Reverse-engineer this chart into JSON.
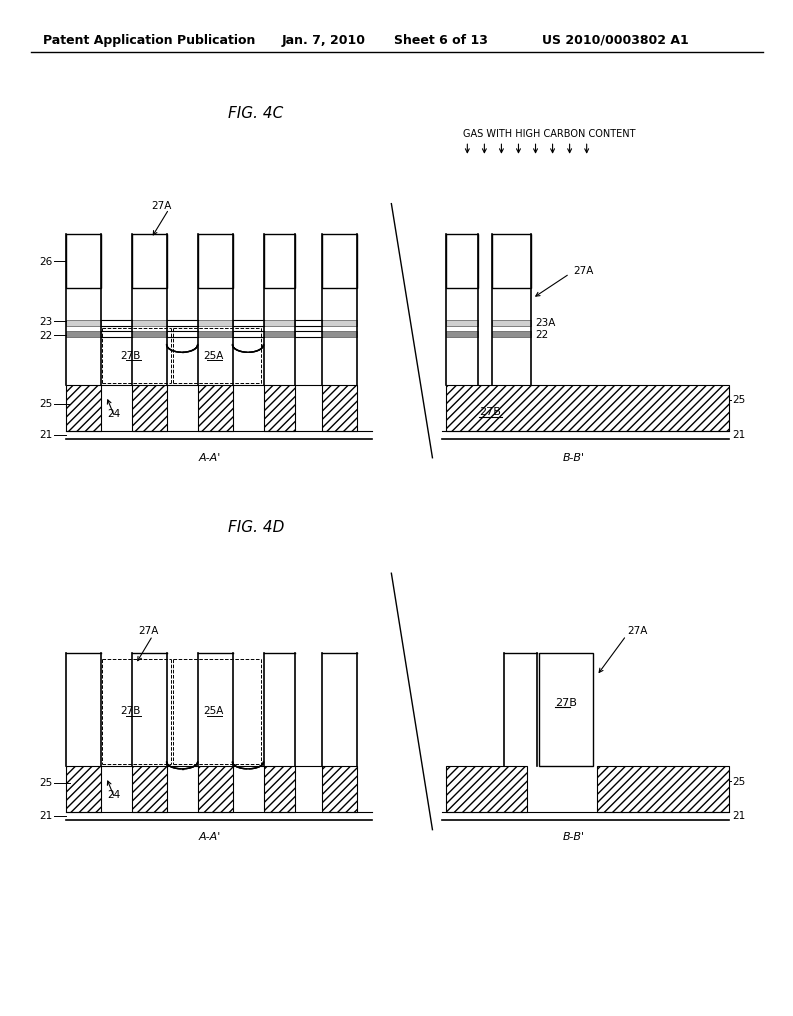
{
  "bg_color": "#ffffff",
  "header_text": "Patent Application Publication",
  "header_date": "Jan. 7, 2010",
  "header_sheet": "Sheet 6 of 13",
  "header_patent": "US 2010/0003802 A1",
  "fig4c_title": "FIG. 4C",
  "fig4d_title": "FIG. 4D",
  "gas_label": "GAS WITH HIGH CARBON CONTENT"
}
